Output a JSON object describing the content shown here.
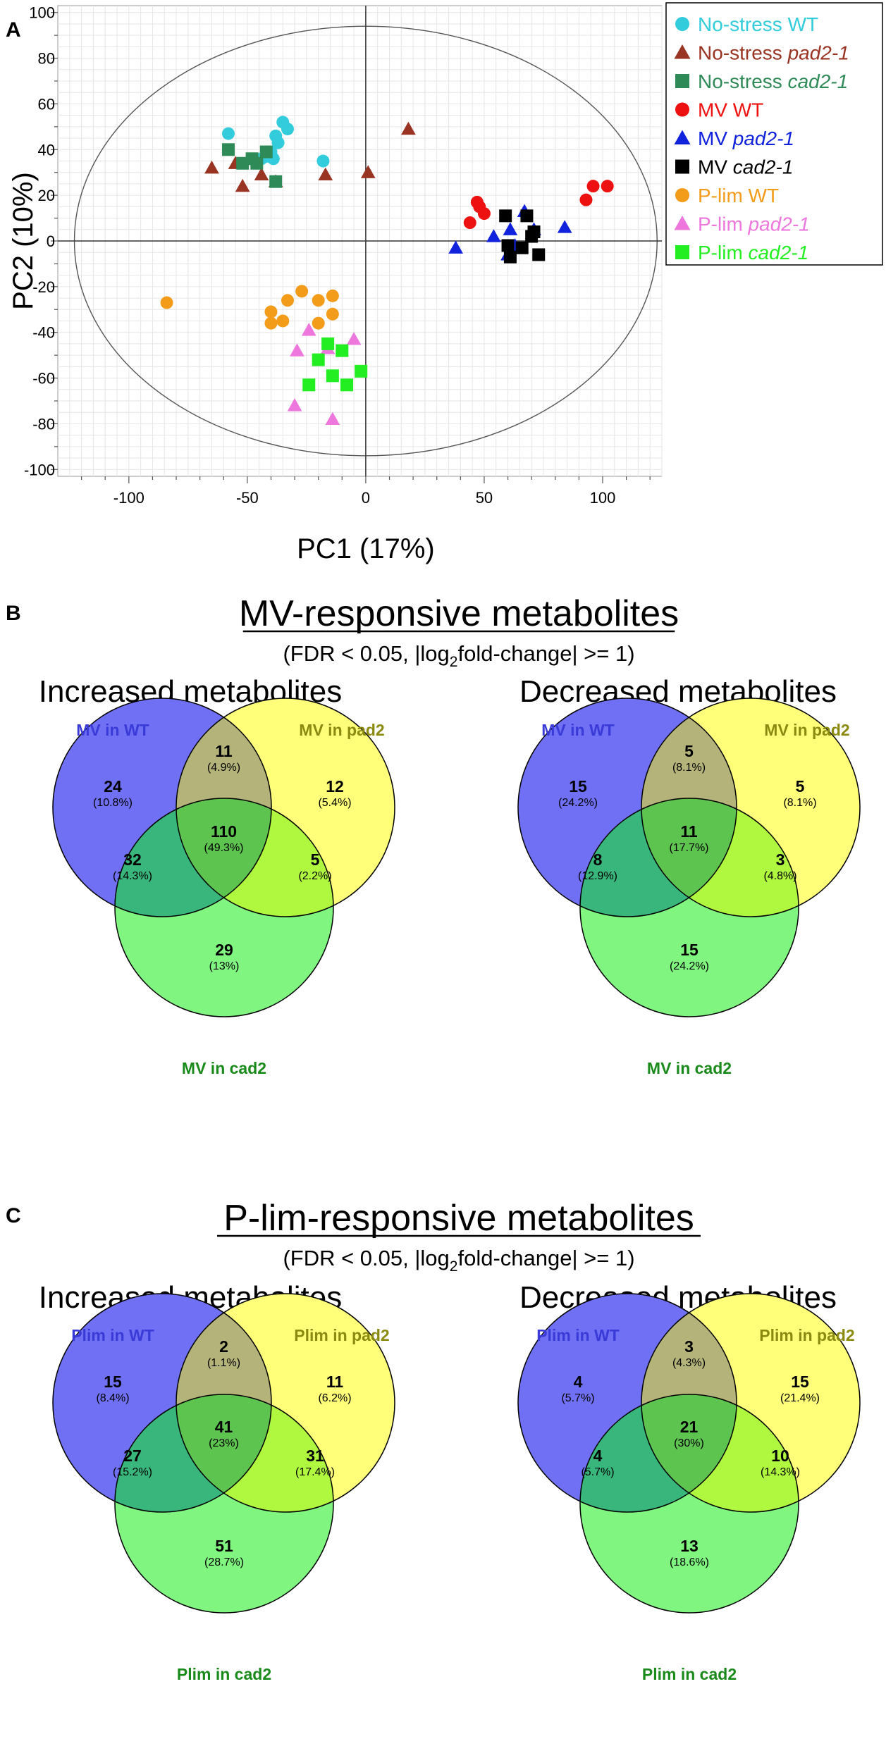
{
  "panel_labels": {
    "a": "A",
    "b": "B",
    "c": "C"
  },
  "chart_data": [
    {
      "type": "scatter",
      "panel": "A",
      "title": "",
      "xlabel": "PC1 (17%)",
      "ylabel": "PC2 (10%)",
      "xlim": [
        -130,
        125
      ],
      "ylim": [
        -103,
        103
      ],
      "xticks": [
        -100,
        -50,
        0,
        50,
        100
      ],
      "yticks": [
        -100,
        -80,
        -60,
        -40,
        -20,
        0,
        20,
        40,
        60,
        80,
        100
      ],
      "xtick_labels": [
        "-100",
        "-50",
        "0",
        "50",
        "100"
      ],
      "ytick_labels": [
        "-100",
        "-80",
        "-60",
        "-40",
        "-20",
        "0",
        "20",
        "40",
        "60",
        "80",
        "100"
      ],
      "grid": true,
      "hotelling_ellipse": {
        "rx": 123,
        "ry": 94
      },
      "legend_position": "top-right",
      "series": [
        {
          "name": "No-stress WT",
          "legend_prefix": "No-stress",
          "legend_suffix": "WT",
          "color": "#33ccdd",
          "marker": "circle",
          "points": [
            [
              -35,
              52
            ],
            [
              -33,
              49
            ],
            [
              -38,
              46
            ],
            [
              -37,
              43
            ],
            [
              -40,
              39
            ],
            [
              -42,
              37
            ],
            [
              -44,
              36
            ],
            [
              -58,
              47
            ],
            [
              -18,
              35
            ],
            [
              -39,
              36
            ]
          ]
        },
        {
          "name": "No-stress pad2-1",
          "legend_prefix": "No-stress",
          "legend_suffix": "pad2-1",
          "color": "#993322",
          "marker": "triangle",
          "points": [
            [
              -65,
              32
            ],
            [
              -55,
              34
            ],
            [
              -44,
              29
            ],
            [
              -38,
              26
            ],
            [
              -52,
              24
            ],
            [
              -17,
              29
            ],
            [
              1,
              30
            ],
            [
              18,
              49
            ]
          ]
        },
        {
          "name": "No-stress cad2-1",
          "legend_prefix": "No-stress",
          "legend_suffix": "cad2-1",
          "color": "#2e8b57",
          "marker": "square",
          "points": [
            [
              -58,
              40
            ],
            [
              -52,
              34
            ],
            [
              -46,
              34
            ],
            [
              -42,
              39
            ],
            [
              -38,
              26
            ],
            [
              -48,
              36
            ]
          ]
        },
        {
          "name": "MV WT",
          "legend_prefix": "MV",
          "legend_suffix": "WT",
          "color": "#ee1111",
          "marker": "circle",
          "points": [
            [
              47,
              17
            ],
            [
              50,
              12
            ],
            [
              48,
              15
            ],
            [
              44,
              8
            ],
            [
              102,
              24
            ],
            [
              96,
              24
            ],
            [
              93,
              18
            ]
          ]
        },
        {
          "name": "MV pad2-1",
          "legend_prefix": "MV",
          "legend_suffix": "pad2-1",
          "color": "#1122dd",
          "marker": "triangle",
          "points": [
            [
              38,
              -3
            ],
            [
              54,
              2
            ],
            [
              63,
              -2
            ],
            [
              67,
              13
            ],
            [
              71,
              5
            ],
            [
              84,
              6
            ],
            [
              60,
              -6
            ],
            [
              61,
              5
            ]
          ]
        },
        {
          "name": "MV cad2-1",
          "legend_prefix": "MV",
          "legend_suffix": "cad2-1",
          "color": "#000000",
          "marker": "square",
          "points": [
            [
              59,
              11
            ],
            [
              68,
              11
            ],
            [
              71,
              4
            ],
            [
              60,
              -2
            ],
            [
              61,
              -7
            ],
            [
              73,
              -6
            ],
            [
              66,
              -3
            ],
            [
              70,
              2
            ]
          ]
        },
        {
          "name": "P-lim WT",
          "legend_prefix": "P-lim",
          "legend_suffix": "WT",
          "color": "#f39c1a",
          "marker": "circle",
          "points": [
            [
              -84,
              -27
            ],
            [
              -40,
              -31
            ],
            [
              -40,
              -36
            ],
            [
              -33,
              -26
            ],
            [
              -27,
              -22
            ],
            [
              -20,
              -26
            ],
            [
              -20,
              -36
            ],
            [
              -14,
              -24
            ],
            [
              -14,
              -32
            ],
            [
              -35,
              -35
            ]
          ]
        },
        {
          "name": "P-lim pad2-1",
          "legend_prefix": "P-lim",
          "legend_suffix": "pad2-1",
          "color": "#ee77dd",
          "marker": "triangle",
          "points": [
            [
              -24,
              -39
            ],
            [
              -29,
              -48
            ],
            [
              -30,
              -72
            ],
            [
              -14,
              -78
            ],
            [
              -5,
              -43
            ],
            [
              -16,
              -47
            ]
          ]
        },
        {
          "name": "P-lim cad2-1",
          "legend_prefix": "P-lim",
          "legend_suffix": "cad2-1",
          "color": "#22ee22",
          "marker": "square",
          "points": [
            [
              -16,
              -45
            ],
            [
              -10,
              -48
            ],
            [
              -20,
              -52
            ],
            [
              -24,
              -63
            ],
            [
              -14,
              -59
            ],
            [
              -8,
              -63
            ],
            [
              -2,
              -57
            ]
          ]
        }
      ]
    },
    {
      "type": "venn",
      "panel": "B",
      "title": "MV-responsive metabolites",
      "subtitle": {
        "before": "(FDR < 0.05, |log",
        "sub": "2",
        "after": "fold-change| >= 1)"
      },
      "diagrams": [
        {
          "heading": "Increased metabolites",
          "sets": [
            "MV in WT",
            "MV in pad2",
            "MV in cad2"
          ],
          "regions": {
            "a_only": {
              "count": "24",
              "pct": "(10.8%)"
            },
            "b_only": {
              "count": "12",
              "pct": "(5.4%)"
            },
            "c_only": {
              "count": "29",
              "pct": "(13%)"
            },
            "ab": {
              "count": "11",
              "pct": "(4.9%)"
            },
            "ac": {
              "count": "32",
              "pct": "(14.3%)"
            },
            "bc": {
              "count": "5",
              "pct": "(2.2%)"
            },
            "abc": {
              "count": "110",
              "pct": "(49.3%)"
            }
          }
        },
        {
          "heading": "Decreased metabolites",
          "sets": [
            "MV in WT",
            "MV in pad2",
            "MV in cad2"
          ],
          "regions": {
            "a_only": {
              "count": "15",
              "pct": "(24.2%)"
            },
            "b_only": {
              "count": "5",
              "pct": "(8.1%)"
            },
            "c_only": {
              "count": "15",
              "pct": "(24.2%)"
            },
            "ab": {
              "count": "5",
              "pct": "(8.1%)"
            },
            "ac": {
              "count": "8",
              "pct": "(12.9%)"
            },
            "bc": {
              "count": "3",
              "pct": "(4.8%)"
            },
            "abc": {
              "count": "11",
              "pct": "(17.7%)"
            }
          }
        }
      ]
    },
    {
      "type": "venn",
      "panel": "C",
      "title": "P-lim-responsive metabolites",
      "subtitle": {
        "before": "(FDR < 0.05, |log",
        "sub": "2",
        "after": "fold-change| >= 1)"
      },
      "diagrams": [
        {
          "heading": "Increased metabolites",
          "sets": [
            "Plim in WT",
            "Plim in pad2",
            "Plim in cad2"
          ],
          "regions": {
            "a_only": {
              "count": "15",
              "pct": "(8.4%)"
            },
            "b_only": {
              "count": "11",
              "pct": "(6.2%)"
            },
            "c_only": {
              "count": "51",
              "pct": "(28.7%)"
            },
            "ab": {
              "count": "2",
              "pct": "(1.1%)"
            },
            "ac": {
              "count": "27",
              "pct": "(15.2%)"
            },
            "bc": {
              "count": "31",
              "pct": "(17.4%)"
            },
            "abc": {
              "count": "41",
              "pct": "(23%)"
            }
          }
        },
        {
          "heading": "Decreased metabolites",
          "sets": [
            "Plim in WT",
            "Plim in pad2",
            "Plim in cad2"
          ],
          "regions": {
            "a_only": {
              "count": "4",
              "pct": "(5.7%)"
            },
            "b_only": {
              "count": "15",
              "pct": "(21.4%)"
            },
            "c_only": {
              "count": "13",
              "pct": "(18.6%)"
            },
            "ab": {
              "count": "3",
              "pct": "(4.3%)"
            },
            "ac": {
              "count": "4",
              "pct": "(5.7%)"
            },
            "bc": {
              "count": "10",
              "pct": "(14.3%)"
            },
            "abc": {
              "count": "21",
              "pct": "(30%)"
            }
          }
        }
      ]
    }
  ],
  "colors": {
    "venn_a": "#7070f4",
    "venn_b": "#ffff7a",
    "venn_c": "#80f580",
    "venn_ab": "#b4b37a",
    "venn_ac": "#38b67c",
    "venn_bc": "#b0f840",
    "venn_abc": "#5ec450",
    "label_a": "#3a3ad8",
    "label_b": "#8a8a10",
    "label_c": "#1a8a1a"
  }
}
